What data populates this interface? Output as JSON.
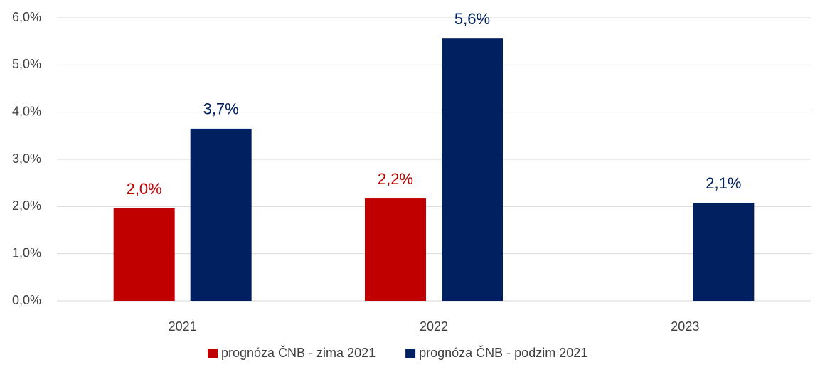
{
  "chart_data": {
    "type": "bar",
    "categories": [
      "2021",
      "2022",
      "2023"
    ],
    "series": [
      {
        "name": "prognóza ČNB - zima 2021",
        "color": "#c00000",
        "values": [
          1.96,
          2.17,
          null
        ],
        "value_labels": [
          "2,0%",
          "2,2%",
          null
        ]
      },
      {
        "name": "prognóza ČNB - podzim 2021",
        "color": "#002060",
        "values": [
          3.65,
          5.56,
          2.08
        ],
        "value_labels": [
          "3,7%",
          "5,6%",
          "2,1%"
        ]
      }
    ],
    "ylim": [
      0,
      6
    ],
    "yticks": [
      {
        "value": 0,
        "label": "0,0%"
      },
      {
        "value": 1,
        "label": "1,0%"
      },
      {
        "value": 2,
        "label": "2,0%"
      },
      {
        "value": 3,
        "label": "3,0%"
      },
      {
        "value": 4,
        "label": "4,0%"
      },
      {
        "value": 5,
        "label": "5,0%"
      },
      {
        "value": 6,
        "label": "6,0%"
      }
    ],
    "grid": true,
    "legend": "bottom"
  }
}
